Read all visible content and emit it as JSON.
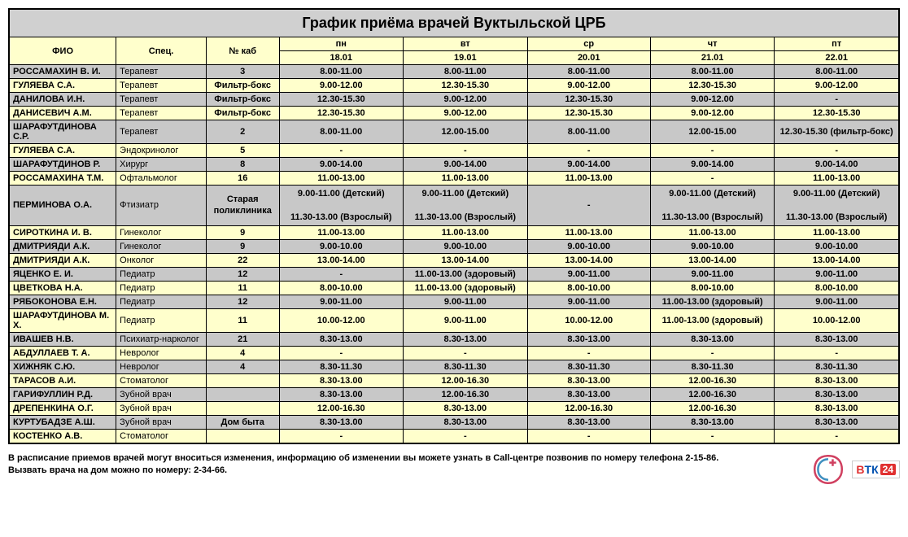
{
  "title": "График приёма врачей Вуктыльской ЦРБ",
  "colors": {
    "title_bg": "#d0d0d0",
    "yellow_bg": "#ffffcc",
    "gray_bg": "#c8c8c8",
    "border": "#000000",
    "text": "#000000"
  },
  "header": {
    "name": "ФИО",
    "spec": "Спец.",
    "room": "№ каб",
    "days": [
      "пн",
      "вт",
      "ср",
      "чт",
      "пт"
    ],
    "dates": [
      "18.01",
      "19.01",
      "20.01",
      "21.01",
      "22.01"
    ]
  },
  "rows": [
    {
      "name": "РОССАМАХИН В. И.",
      "spec": "Терапевт",
      "room": "3",
      "t": [
        "8.00-11.00",
        "8.00-11.00",
        "8.00-11.00",
        "8.00-11.00",
        "8.00-11.00"
      ]
    },
    {
      "name": "ГУЛЯЕВА С.А.",
      "spec": "Терапевт",
      "room": "Фильтр-бокс",
      "t": [
        "9.00-12.00",
        "12.30-15.30",
        "9.00-12.00",
        "12.30-15.30",
        "9.00-12.00"
      ]
    },
    {
      "name": "ДАНИЛОВА И.Н.",
      "spec": "Терапевт",
      "room": "Фильтр-бокс",
      "t": [
        "12.30-15.30",
        "9.00-12.00",
        "12.30-15.30",
        "9.00-12.00",
        "-"
      ]
    },
    {
      "name": "ДАНИСЕВИЧ А.М.",
      "spec": "Терапевт",
      "room": "Фильтр-бокс",
      "t": [
        "12.30-15.30",
        "9.00-12.00",
        "12.30-15.30",
        "9.00-12.00",
        "12.30-15.30"
      ]
    },
    {
      "name": "ШАРАФУТДИНОВА С.Р.",
      "spec": "Терапевт",
      "room": "2",
      "t": [
        "8.00-11.00",
        "12.00-15.00",
        "8.00-11.00",
        "12.00-15.00",
        "12.30-15.30 (фильтр-бокс)"
      ]
    },
    {
      "name": "ГУЛЯЕВА С.А.",
      "spec": "Эндокринолог",
      "room": "5",
      "t": [
        "-",
        "-",
        "-",
        "-",
        "-"
      ]
    },
    {
      "name": "ШАРАФУТДИНОВ Р.",
      "spec": "Хирург",
      "room": "8",
      "t": [
        "9.00-14.00",
        "9.00-14.00",
        "9.00-14.00",
        "9.00-14.00",
        "9.00-14.00"
      ]
    },
    {
      "name": "РОССАМАХИНА Т.М.",
      "spec": "Офтальмолог",
      "room": "16",
      "t": [
        "11.00-13.00",
        "11.00-13.00",
        "11.00-13.00",
        "-",
        "11.00-13.00"
      ]
    },
    {
      "name": "ПЕРМИНОВА О.А.",
      "spec": "Фтизиатр",
      "room": "Старая\nполиклиника",
      "t": [
        "9.00-11.00 (Детский)\n\n11.30-13.00 (Взрослый)",
        "9.00-11.00 (Детский)\n\n11.30-13.00 (Взрослый)",
        "-",
        "9.00-11.00 (Детский)\n\n11.30-13.00 (Взрослый)",
        "9.00-11.00 (Детский)\n\n11.30-13.00 (Взрослый)"
      ],
      "multiline": true
    },
    {
      "name": "СИРОТКИНА И. В.",
      "spec": "Гинеколог",
      "room": "9",
      "t": [
        "11.00-13.00",
        "11.00-13.00",
        "11.00-13.00",
        "11.00-13.00",
        "11.00-13.00"
      ]
    },
    {
      "name": "ДМИТРИЯДИ А.К.",
      "spec": "Гинеколог",
      "room": "9",
      "t": [
        "9.00-10.00",
        "9.00-10.00",
        "9.00-10.00",
        "9.00-10.00",
        "9.00-10.00"
      ]
    },
    {
      "name": "ДМИТРИЯДИ А.К.",
      "spec": "Онколог",
      "room": "22",
      "t": [
        "13.00-14.00",
        "13.00-14.00",
        "13.00-14.00",
        "13.00-14.00",
        "13.00-14.00"
      ]
    },
    {
      "name": "ЯЦЕНКО Е. И.",
      "spec": "Педиатр",
      "room": "12",
      "t": [
        "-",
        "11.00-13.00 (здоровый)",
        "9.00-11.00",
        "9.00-11.00",
        "9.00-11.00"
      ]
    },
    {
      "name": "ЦВЕТКОВА Н.А.",
      "spec": "Педиатр",
      "room": "11",
      "t": [
        "8.00-10.00",
        "11.00-13.00 (здоровый)",
        "8.00-10.00",
        "8.00-10.00",
        "8.00-10.00"
      ]
    },
    {
      "name": "РЯБОКОНОВА Е.Н.",
      "spec": "Педиатр",
      "room": "12",
      "t": [
        "9.00-11.00",
        "9.00-11.00",
        "9.00-11.00",
        "11.00-13.00 (здоровый)",
        "9.00-11.00"
      ]
    },
    {
      "name": "ШАРАФУТДИНОВА М. Х.",
      "spec": "Педиатр",
      "room": "11",
      "t": [
        "10.00-12.00",
        "9.00-11.00",
        "10.00-12.00",
        "11.00-13.00 (здоровый)",
        "10.00-12.00"
      ]
    },
    {
      "name": "ИВАШЕВ Н.В.",
      "spec": "Психиатр-нарколог",
      "room": "21",
      "t": [
        "8.30-13.00",
        "8.30-13.00",
        "8.30-13.00",
        "8.30-13.00",
        "8.30-13.00"
      ]
    },
    {
      "name": "АБДУЛЛАЕВ Т. А.",
      "spec": "Невролог",
      "room": "4",
      "t": [
        "-",
        "-",
        "-",
        "-",
        "-"
      ]
    },
    {
      "name": "ХИЖНЯК С.Ю.",
      "spec": "Невролог",
      "room": "4",
      "t": [
        "8.30-11.30",
        "8.30-11.30",
        "8.30-11.30",
        "8.30-11.30",
        "8.30-11.30"
      ]
    },
    {
      "name": "ТАРАСОВ А.И.",
      "spec": "Стоматолог",
      "room": "",
      "t": [
        "8.30-13.00",
        "12.00-16.30",
        "8.30-13.00",
        "12.00-16.30",
        "8.30-13.00"
      ]
    },
    {
      "name": "ГАРИФУЛЛИН Р.Д.",
      "spec": "Зубной врач",
      "room": "",
      "t": [
        "8.30-13.00",
        "12.00-16.30",
        "8.30-13.00",
        "12.00-16.30",
        "8.30-13.00"
      ]
    },
    {
      "name": "ДРЕПЕНКИНА О.Г.",
      "spec": "Зубной врач",
      "room": "",
      "t": [
        "12.00-16.30",
        "8.30-13.00",
        "12.00-16.30",
        "12.00-16.30",
        "8.30-13.00"
      ]
    },
    {
      "name": "КУРТУБАДЗЕ А.Ш.",
      "spec": "Зубной врач",
      "room": "Дом быта",
      "t": [
        "8.30-13.00",
        "8.30-13.00",
        "8.30-13.00",
        "8.30-13.00",
        "8.30-13.00"
      ]
    },
    {
      "name": "КОСТЕНКО А.В.",
      "spec": "Стоматолог",
      "room": "",
      "t": [
        "-",
        "-",
        "-",
        "-",
        "-"
      ]
    }
  ],
  "footer": {
    "line1": "В расписание приемов врачей могут вноситься изменения, информацию об изменении вы можете узнать в Call-центре позвонив по номеру телефона 2-15-86.",
    "line2": "Вызвать врача на дом можно по номеру: 2-34-66."
  },
  "logos": {
    "btk": {
      "b": "В",
      "t": "Т",
      "k": "К",
      "n": "24"
    }
  }
}
